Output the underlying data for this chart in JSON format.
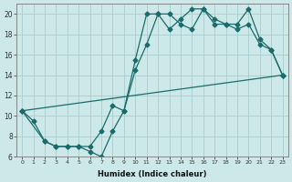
{
  "xlabel": "Humidex (Indice chaleur)",
  "bg_color": "#cce8e8",
  "grid_color": "#aacccc",
  "line_color": "#1a6b6b",
  "xlim": [
    -0.5,
    23.5
  ],
  "ylim": [
    6,
    21
  ],
  "yticks": [
    6,
    8,
    10,
    12,
    14,
    16,
    18,
    20
  ],
  "xticks": [
    0,
    1,
    2,
    3,
    4,
    5,
    6,
    7,
    8,
    9,
    10,
    11,
    12,
    13,
    14,
    15,
    16,
    17,
    18,
    19,
    20,
    21,
    22,
    23
  ],
  "series1_x": [
    0,
    1,
    2,
    3,
    4,
    5,
    6,
    7,
    8,
    9,
    10,
    11,
    12,
    13,
    14,
    15,
    16,
    17,
    18,
    19,
    20,
    21,
    22,
    23
  ],
  "series1_y": [
    10.5,
    9.5,
    7.5,
    7.0,
    7.0,
    7.0,
    6.5,
    6.0,
    8.5,
    10.5,
    15.5,
    20.0,
    20.0,
    18.5,
    19.5,
    20.5,
    20.5,
    19.5,
    19.0,
    19.0,
    20.5,
    17.5,
    16.5,
    14.0
  ],
  "series2_x": [
    0,
    2,
    3,
    4,
    5,
    6,
    7,
    8,
    9,
    10,
    11,
    12,
    13,
    14,
    15,
    16,
    17,
    18,
    19,
    20,
    21,
    22,
    23
  ],
  "series2_y": [
    10.5,
    7.5,
    7.0,
    7.0,
    7.0,
    7.0,
    8.5,
    11.0,
    10.5,
    14.5,
    17.0,
    20.0,
    20.0,
    19.0,
    18.5,
    20.5,
    19.0,
    19.0,
    18.5,
    19.0,
    17.0,
    16.5,
    14.0
  ],
  "series3_x": [
    0,
    23
  ],
  "series3_y": [
    10.5,
    14.0
  ]
}
